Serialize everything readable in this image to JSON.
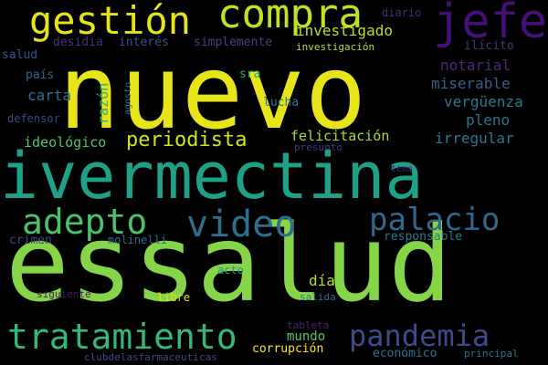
{
  "words": {
    "essalud": {
      "text": "essalud",
      "color": "#86d549"
    },
    "nuevo": {
      "text": "nuevo",
      "color": "#e7e419"
    },
    "ivermectina": {
      "text": "ivermectina",
      "color": "#1fa187"
    },
    "gestion": {
      "text": "gestión",
      "color": "#e5e419"
    },
    "compra": {
      "text": "compra",
      "color": "#c5e021"
    },
    "jefe": {
      "text": "jefe",
      "color": "#440f76"
    },
    "tratamiento": {
      "text": "tratamiento",
      "color": "#35b779"
    },
    "adepto": {
      "text": "adepto",
      "color": "#4ac16d"
    },
    "video": {
      "text": "video",
      "color": "#2e6f8e"
    },
    "palacio": {
      "text": "palacio",
      "color": "#31688e"
    },
    "pandemia": {
      "text": "pandemia",
      "color": "#3e4a89"
    },
    "periodista": {
      "text": "periodista",
      "color": "#d2e21b"
    },
    "investigado": {
      "text": "investigado",
      "color": "#bddf26"
    },
    "desidia": {
      "text": "desidia",
      "color": "#46307e"
    },
    "interes": {
      "text": "interés",
      "color": "#3b528b"
    },
    "simplemente": {
      "text": "simplemente",
      "color": "#414487"
    },
    "diario": {
      "text": "diario",
      "color": "#472d7b"
    },
    "salud": {
      "text": "salud",
      "color": "#3b528b"
    },
    "investigacion": {
      "text": "investigación",
      "color": "#b5de2b"
    },
    "ilicito": {
      "text": "ilícito",
      "color": "#46337e"
    },
    "pais": {
      "text": "país",
      "color": "#31688e"
    },
    "sra": {
      "text": "sra",
      "color": "#22a884"
    },
    "notarial": {
      "text": "notarial",
      "color": "#472c7a"
    },
    "carta": {
      "text": "carta",
      "color": "#2c728e"
    },
    "razon": {
      "text": "razón",
      "color": "#29af7f"
    },
    "miserable": {
      "text": "miserable",
      "color": "#33638d"
    },
    "verguenza": {
      "text": "vergüenza",
      "color": "#2a788e"
    },
    "lucha": {
      "text": "lucha",
      "color": "#2a768e"
    },
    "agosto": {
      "text": "agosto",
      "color": "#287c8e"
    },
    "defensor": {
      "text": "defensor",
      "color": "#3e4989"
    },
    "pleno": {
      "text": "pleno",
      "color": "#2a788e"
    },
    "ideologico": {
      "text": "ideológico",
      "color": "#52c569"
    },
    "felicitacion": {
      "text": "felicitación",
      "color": "#a5db36"
    },
    "irregular": {
      "text": "irregular",
      "color": "#2a788e"
    },
    "presunto": {
      "text": "presunto",
      "color": "#443983"
    },
    "tema": {
      "text": "tema",
      "color": "#482878"
    },
    "responsable": {
      "text": "responsable",
      "color": "#2a788e"
    },
    "crimen": {
      "text": "crimen",
      "color": "#414487"
    },
    "molinelli": {
      "text": "molinelli",
      "color": "#306a8e"
    },
    "acto": {
      "text": "acto",
      "color": "#1f988b"
    },
    "dia": {
      "text": "día",
      "color": "#b8de29"
    },
    "siguiente": {
      "text": "siguiente",
      "color": "#48186a"
    },
    "libre": {
      "text": "libre",
      "color": "#dde318"
    },
    "salida": {
      "text": "salida",
      "color": "#2d718e"
    },
    "mundo": {
      "text": "mundo",
      "color": "#56c667"
    },
    "tableta": {
      "text": "tableta",
      "color": "#482576"
    },
    "corrupcion": {
      "text": "corrupción",
      "color": "#fde725"
    },
    "economico": {
      "text": "económico",
      "color": "#2c738e"
    },
    "principal": {
      "text": "principal",
      "color": "#2b758e"
    },
    "clubdelasfarmaceuticas": {
      "text": "clubdelasfarmaceuticas",
      "color": "#3f4788"
    }
  }
}
